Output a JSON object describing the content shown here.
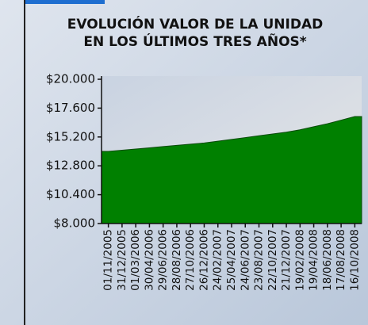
{
  "chart_data": {
    "type": "area",
    "title": [
      "EVOLUCIÓN VALOR DE LA UNIDAD",
      "EN LOS ÚLTIMOS TRES AÑOS*"
    ],
    "categories": [
      "01/11/2005",
      "31/12/2005",
      "01/03/2006",
      "30/04/2006",
      "29/06/2006",
      "28/08/2006",
      "27/10/2006",
      "26/12/2006",
      "24/02/2007",
      "25/04/2007",
      "24/06/2007",
      "23/08/2007",
      "22/10/2007",
      "21/12/2007",
      "19/02/2008",
      "19/04/2008",
      "18/06/2008",
      "17/08/2008",
      "16/10/2008"
    ],
    "values": [
      14000,
      14100,
      14200,
      14300,
      14400,
      14500,
      14600,
      14700,
      14850,
      15000,
      15150,
      15300,
      15450,
      15600,
      15800,
      16050,
      16300,
      16600,
      16900
    ],
    "color": "#008000",
    "ylim": [
      8000,
      20000
    ],
    "yticks": [
      {
        "value": 8000,
        "label": "$8.000"
      },
      {
        "value": 10400,
        "label": "$10.400"
      },
      {
        "value": 12800,
        "label": "$12.800"
      },
      {
        "value": 15200,
        "label": "$15.200"
      },
      {
        "value": 17600,
        "label": "$17.600"
      },
      {
        "value": 20000,
        "label": "$20.000"
      }
    ]
  }
}
